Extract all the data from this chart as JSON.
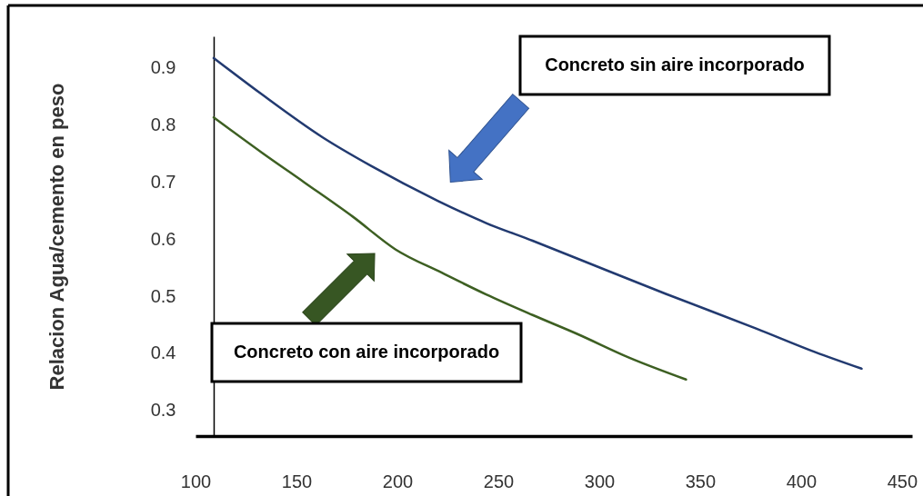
{
  "chart_data": {
    "type": "line",
    "xlim": [
      100,
      455
    ],
    "xticks": [
      100,
      150,
      200,
      250,
      300,
      350,
      400,
      450
    ],
    "ylim": [
      0.255,
      0.955
    ],
    "yticks": [
      0.3,
      0.4,
      0.5,
      0.6,
      0.7,
      0.8,
      0.9
    ],
    "ylabel": "Relacion Agua/cemento en peso",
    "grid": false,
    "line_style": "solid",
    "series": [
      {
        "color": "#223a70",
        "x": [
          109,
          133,
          163,
          187,
          220,
          244,
          267,
          289,
          333,
          378,
          407,
          430
        ],
        "values": [
          0.917,
          0.853,
          0.778,
          0.728,
          0.667,
          0.628,
          0.597,
          0.566,
          0.504,
          0.443,
          0.402,
          0.373
        ]
      },
      {
        "color": "#3d5f22",
        "x": [
          109,
          133,
          154,
          178,
          199,
          222,
          244,
          267,
          289,
          315,
          343
        ],
        "values": [
          0.813,
          0.751,
          0.699,
          0.639,
          0.582,
          0.541,
          0.503,
          0.467,
          0.434,
          0.392,
          0.354
        ]
      }
    ],
    "annotations": [
      "Concreto sin aire incorporado",
      "Concreto con aire incorporado"
    ]
  }
}
